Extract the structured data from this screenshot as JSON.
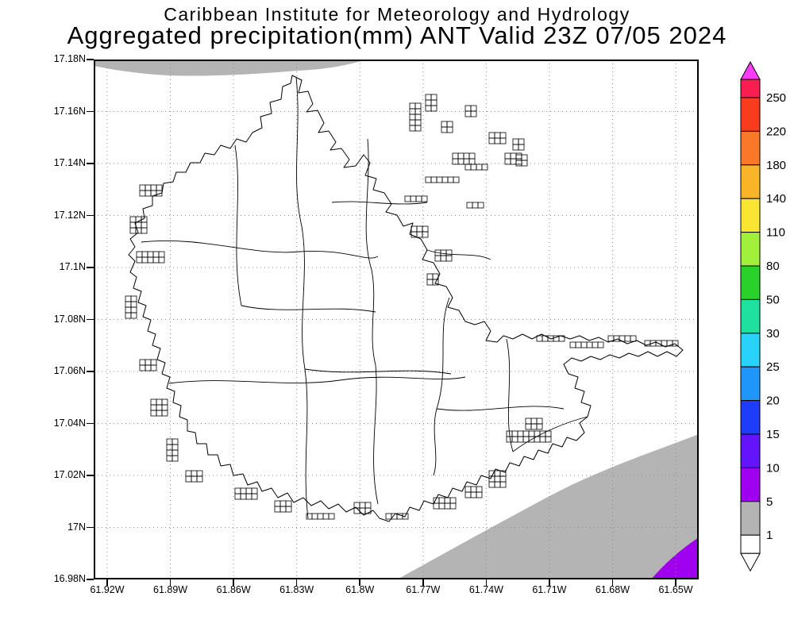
{
  "header": {
    "title_line1": "Caribbean Institute for Meteorology and Hydrology",
    "title_line2": "Aggregated precipitation(mm) ANT Valid 23Z 07/05 2024"
  },
  "axes": {
    "y_tick_labels": [
      "17.18N",
      "17.16N",
      "17.14N",
      "17.12N",
      "17.1N",
      "17.08N",
      "17.06N",
      "17.04N",
      "17.02N",
      "17N",
      "16.98N"
    ],
    "x_tick_labels": [
      "61.92W",
      "61.89W",
      "61.86W",
      "61.83W",
      "61.8W",
      "61.77W",
      "61.74W",
      "61.71W",
      "61.68W",
      "61.65W"
    ]
  },
  "colorbar": {
    "tick_labels": [
      "250",
      "220",
      "180",
      "140",
      "110",
      "80",
      "50",
      "30",
      "25",
      "20",
      "15",
      "10",
      "5",
      "1"
    ],
    "band_colors_top_to_bottom": [
      "#fa1e50",
      "#fa3c1e",
      "#fa7828",
      "#fab428",
      "#fae632",
      "#a0f03c",
      "#28d228",
      "#1ee1a0",
      "#28d2fa",
      "#1e96fa",
      "#1e3cfa",
      "#6414fa",
      "#a000f0",
      "#b4b4b4",
      "#ffffff"
    ],
    "arrow_top_color": "#fa3cfa",
    "arrow_bottom_color": "#ffffff"
  },
  "map_colors": {
    "shade_1_5": "#b4b4b4",
    "shade_5_10": "#a000f0",
    "land": "#ffffff",
    "coastline": "#000000",
    "grid": "#8c8c8c"
  }
}
